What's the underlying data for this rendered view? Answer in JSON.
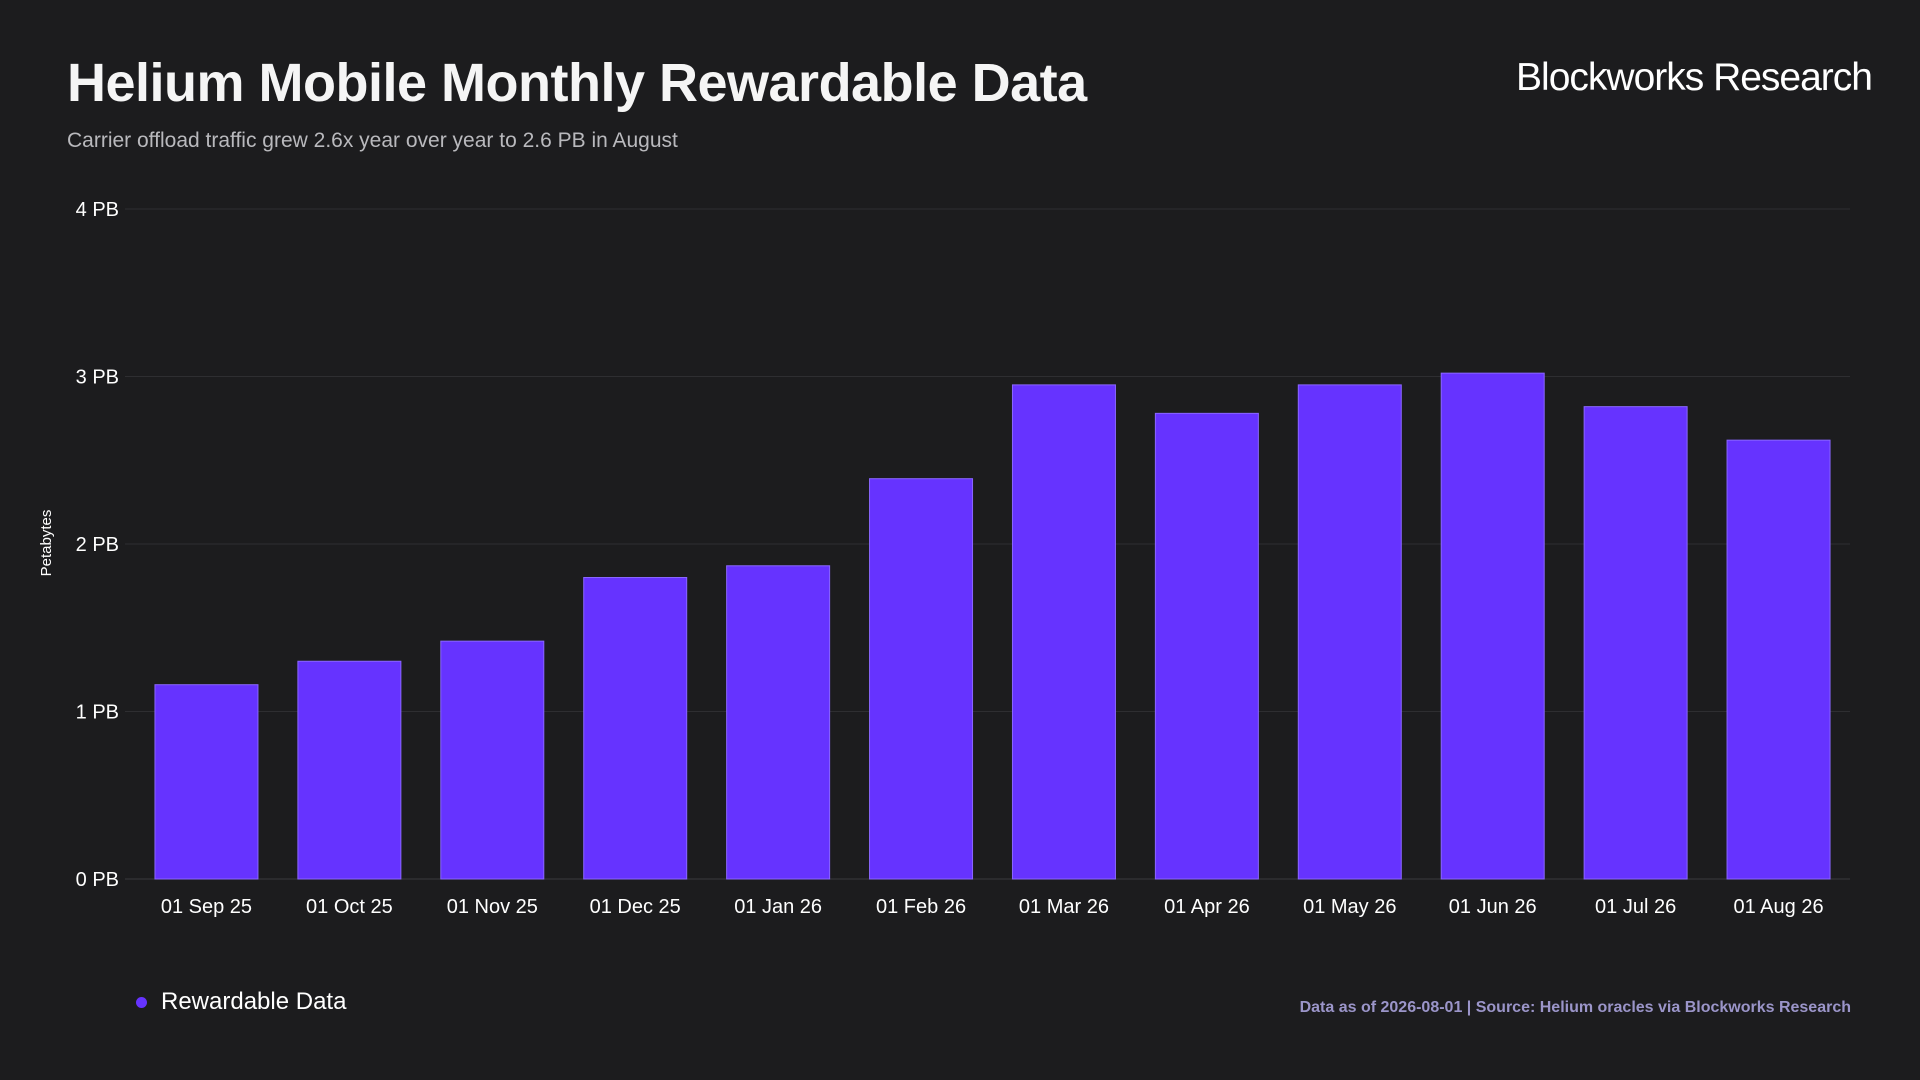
{
  "header": {
    "title": "Helium Mobile Monthly Rewardable Data",
    "subtitle": "Carrier offload traffic grew 2.6x year over year to 2.6 PB in August",
    "brand": "Blockworks Research"
  },
  "footer": {
    "source": "Data as of 2026-08-01 | Source: Helium oracles via Blockworks Research"
  },
  "legend": {
    "label": "Rewardable Data"
  },
  "colors": {
    "bar": "#6633ff",
    "background": "#1c1c1e",
    "grid": "#2e2e31"
  },
  "chart_data": {
    "type": "bar",
    "title": "Helium Mobile Monthly Rewardable Data",
    "subtitle": "Carrier offload traffic grew 2.6x year over year to 2.6 PB in August",
    "xlabel": "",
    "ylabel": "Petabytes",
    "ylim": [
      0,
      4
    ],
    "yticks": [
      0,
      1,
      2,
      3,
      4
    ],
    "ytick_labels": [
      "0 PB",
      "1 PB",
      "2 PB",
      "3 PB",
      "4 PB"
    ],
    "grid": "horizontal",
    "legend_position": "bottom-left",
    "categories": [
      "01 Sep 25",
      "01 Oct 25",
      "01 Nov 25",
      "01 Dec 25",
      "01 Jan 26",
      "01 Feb 26",
      "01 Mar 26",
      "01 Apr 26",
      "01 May 26",
      "01 Jun 26",
      "01 Jul 26",
      "01 Aug 26"
    ],
    "series": [
      {
        "name": "Rewardable Data",
        "values": [
          1.16,
          1.3,
          1.42,
          1.8,
          1.87,
          2.39,
          2.95,
          2.78,
          2.95,
          3.02,
          2.82,
          2.62
        ]
      }
    ]
  }
}
